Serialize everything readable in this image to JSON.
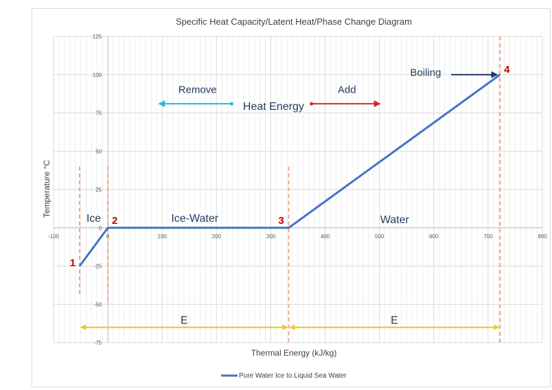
{
  "chart_data": {
    "type": "line",
    "title": "Specific Heat Capacity/Latent Heat/Phase Change Diagram",
    "xlabel": "Thermal Energy (kJ/kg)",
    "ylabel": "Temperature °C",
    "xlim": [
      -100,
      800
    ],
    "ylim": [
      -75,
      125
    ],
    "x_ticks": [
      -100,
      0,
      100,
      200,
      300,
      400,
      500,
      600,
      700,
      800
    ],
    "y_ticks": [
      -75,
      -50,
      -25,
      0,
      25,
      50,
      75,
      100,
      125
    ],
    "grid": true,
    "legend_position": "bottom",
    "series": [
      {
        "name": "Pure Water Ice to Liquid Sea Water",
        "color": "#4472c4",
        "x": [
          -52,
          0,
          333,
          722
        ],
        "y": [
          -25,
          0,
          0,
          100
        ]
      }
    ],
    "phase_boundaries": [
      {
        "label": "1",
        "x": -52,
        "y": -25
      },
      {
        "label": "2",
        "x": 0,
        "y": 0
      },
      {
        "label": "3",
        "x": 333,
        "y": 0
      },
      {
        "label": "4",
        "x": 722,
        "y": 100
      }
    ],
    "phase_labels": [
      {
        "text": "Ice",
        "x": -26,
        "y": 4
      },
      {
        "text": "Ice-Water",
        "x": 160,
        "y": 4
      },
      {
        "text": "Water",
        "x": 528,
        "y": 3
      }
    ],
    "annotations": {
      "boiling": {
        "text": "Boiling",
        "x": 585,
        "y": 101
      },
      "remove": {
        "text": "Remove",
        "x": 165,
        "y": 88
      },
      "add": {
        "text": "Add",
        "x": 440,
        "y": 88
      },
      "heat_energy": {
        "text": "Heat Energy",
        "x": 305,
        "y": 77
      },
      "energy_spans": [
        {
          "text": "E",
          "from": -52,
          "to": 333,
          "y": -65
        },
        {
          "text": "E",
          "from": 333,
          "to": 722,
          "y": -65
        }
      ]
    },
    "colors": {
      "line": "#4472c4",
      "boundary": "#f4a582",
      "phase_number": "#c00000",
      "energy_arrow": "#f5c518",
      "remove_arrow": "#29b6d6",
      "add_arrow": "#d62828",
      "boiling_arrow": "#203864"
    }
  }
}
